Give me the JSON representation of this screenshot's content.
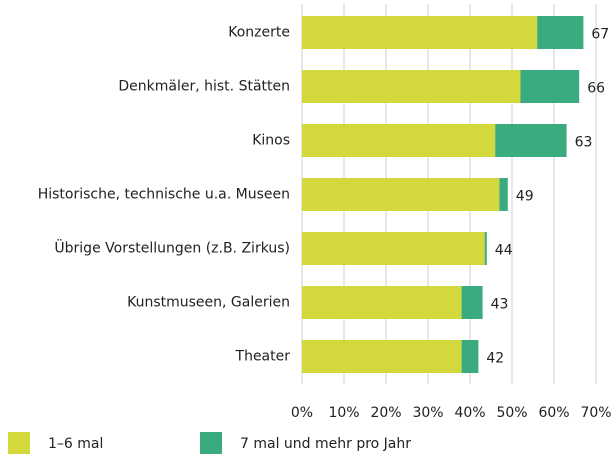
{
  "chart_data": {
    "type": "stacked_bar_horizontal",
    "categories": [
      "Konzerte",
      "Denkmäler, hist. Stätten",
      "Kinos",
      "Historische, technische u.a. Museen",
      "Übrige Vorstellungen (z.B. Zirkus)",
      "Kunstmuseen, Galerien",
      "Theater"
    ],
    "series": [
      {
        "name": "1–6 mal",
        "color": "#d3d83c",
        "values": [
          56,
          52,
          46,
          47,
          43.5,
          38,
          38
        ]
      },
      {
        "name": "7 mal und mehr pro Jahr",
        "color": "#3aab7f",
        "values": [
          11,
          14,
          17,
          2,
          0.5,
          5,
          4
        ]
      }
    ],
    "total_labels": [
      67,
      66,
      63,
      49,
      44,
      43,
      42
    ],
    "xlim": [
      0,
      70
    ],
    "xticks": [
      {
        "value": 0,
        "label": "0%"
      },
      {
        "value": 10,
        "label": "10%"
      },
      {
        "value": 20,
        "label": "20%"
      },
      {
        "value": 30,
        "label": "30%"
      },
      {
        "value": 40,
        "label": "40%"
      },
      {
        "value": 50,
        "label": "50%"
      },
      {
        "value": 60,
        "label": "60%"
      },
      {
        "value": 70,
        "label": "70%"
      }
    ],
    "grid": true
  }
}
